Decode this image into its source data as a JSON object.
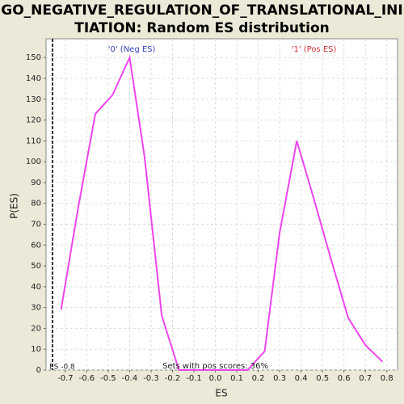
{
  "chart_data": {
    "type": "line",
    "title_lines": [
      "GO_NEGATIVE_REGULATION_OF_TRANSLATIONAL_INI",
      "TIATION: Random ES distribution"
    ],
    "xlabel": "ES",
    "ylabel": "P(ES)",
    "x": [
      -0.72,
      -0.64,
      -0.56,
      -0.48,
      -0.4,
      -0.33,
      -0.25,
      -0.17,
      -0.09,
      -0.01,
      0.07,
      0.15,
      0.23,
      0.3,
      0.38,
      0.46,
      0.54,
      0.62,
      0.7,
      0.78
    ],
    "series": [
      {
        "color": "#ee44ee",
        "values": [
          29,
          78,
          123,
          132,
          150,
          102,
          26,
          0,
          0,
          0,
          0,
          0,
          9,
          66,
          110,
          82,
          53,
          25,
          12,
          4
        ]
      }
    ],
    "xlim": [
      -0.79,
      0.85
    ],
    "ylim": [
      0,
      159
    ],
    "xticks": [
      -0.7,
      -0.6,
      -0.5,
      -0.4,
      -0.3,
      -0.2,
      -0.1,
      {
        "value": 0,
        "label": "0.0"
      },
      0.1,
      0.2,
      0.3,
      0.4,
      0.5,
      0.6,
      0.7,
      0.8
    ],
    "yticks": [
      0,
      10,
      20,
      30,
      40,
      50,
      60,
      70,
      80,
      90,
      100,
      110,
      120,
      130,
      140,
      150
    ],
    "grid": true,
    "es_marker": {
      "value": -0.76,
      "label": "ES -0.8"
    },
    "annotations": [
      {
        "text": "'0' (Neg ES)",
        "x": -0.39,
        "y": 154,
        "color": "#3344bb"
      },
      {
        "text": "'1' (Pos ES)",
        "x": 0.46,
        "y": 154,
        "color": "#cc3333"
      },
      {
        "text": "Sets with pos scores: 36%",
        "x": 0.0,
        "y": 2,
        "color": "#222222"
      }
    ]
  }
}
